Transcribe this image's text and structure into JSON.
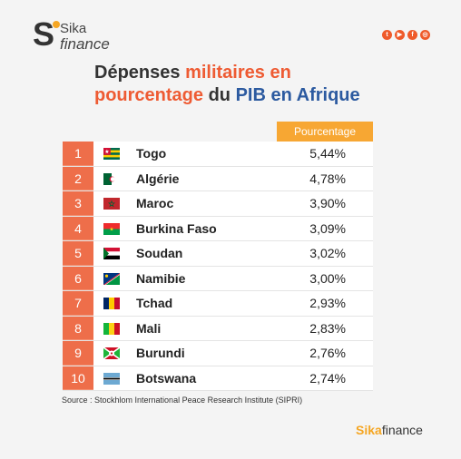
{
  "brand": {
    "letter": "S",
    "word1": "Sika",
    "word2": "finance"
  },
  "social": [
    {
      "icon": "twitter-icon",
      "glyph": "t"
    },
    {
      "icon": "youtube-icon",
      "glyph": "▶"
    },
    {
      "icon": "facebook-icon",
      "glyph": "f"
    },
    {
      "icon": "instagram-icon",
      "glyph": "◎"
    }
  ],
  "title": {
    "part1": "Dépenses ",
    "part2": "militaires en",
    "part3": "pourcentage",
    "part4": " du ",
    "part5": "PIB en Afrique"
  },
  "colors": {
    "accent": "#ee5b33",
    "blue": "#2c5aa0",
    "header": "#f7a733",
    "rank": "#ee6e4a"
  },
  "chart_data": {
    "type": "table",
    "column_header": "Pourcentage",
    "rows": [
      {
        "rank": "1",
        "country": "Togo",
        "value": "5,44%",
        "flag": "togo"
      },
      {
        "rank": "2",
        "country": "Algérie",
        "value": "4,78%",
        "flag": "algeria"
      },
      {
        "rank": "3",
        "country": "Maroc",
        "value": "3,90%",
        "flag": "morocco"
      },
      {
        "rank": "4",
        "country": "Burkina Faso",
        "value": "3,09%",
        "flag": "burkina"
      },
      {
        "rank": "5",
        "country": "Soudan",
        "value": "3,02%",
        "flag": "sudan"
      },
      {
        "rank": "6",
        "country": "Namibie",
        "value": "3,00%",
        "flag": "namibia"
      },
      {
        "rank": "7",
        "country": "Tchad",
        "value": "2,93%",
        "flag": "chad"
      },
      {
        "rank": "8",
        "country": "Mali",
        "value": "2,83%",
        "flag": "mali"
      },
      {
        "rank": "9",
        "country": "Burundi",
        "value": "2,76%",
        "flag": "burundi"
      },
      {
        "rank": "10",
        "country": "Botswana",
        "value": "2,74%",
        "flag": "botswana"
      }
    ]
  },
  "source": "Source : Stockhlom International Peace Research Institute (SIPRI)",
  "footer": {
    "s": "Sika",
    "rest": "finance"
  }
}
